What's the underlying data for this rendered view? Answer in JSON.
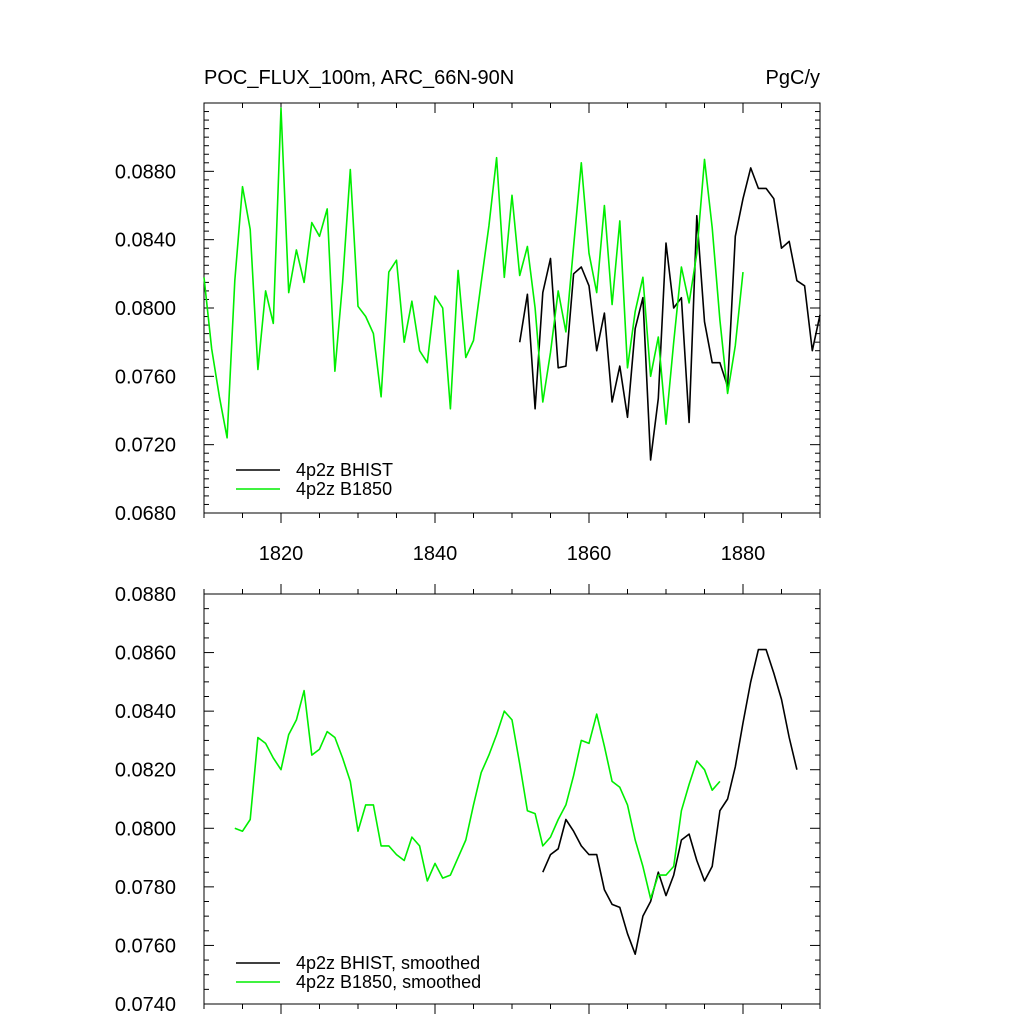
{
  "header": {
    "title": "POC_FLUX_100m, ARC_66N-90N",
    "units": "PgC/y"
  },
  "chart_data": [
    {
      "type": "line",
      "title": "POC_FLUX_100m, ARC_66N-90N",
      "units": "PgC/y",
      "xlim": [
        1810,
        1890
      ],
      "ylim": [
        0.068,
        0.092
      ],
      "x_ticks": [
        "1820",
        "1840",
        "1860",
        "1880"
      ],
      "y_ticks": [
        "0.0680",
        "0.0720",
        "0.0760",
        "0.0800",
        "0.0840",
        "0.0880"
      ],
      "legend_position": "bottom-left",
      "series": [
        {
          "name": "4p2z BHIST",
          "color": "#000000",
          "x": [
            1851,
            1852,
            1853,
            1854,
            1855,
            1856,
            1857,
            1858,
            1859,
            1860,
            1861,
            1862,
            1863,
            1864,
            1865,
            1866,
            1867,
            1868,
            1869,
            1870,
            1871,
            1872,
            1873,
            1874,
            1875,
            1876,
            1877,
            1878,
            1879,
            1880,
            1881,
            1882,
            1883,
            1884,
            1885,
            1886,
            1887,
            1888,
            1889,
            1890
          ],
          "y": [
            0.078,
            0.0808,
            0.0741,
            0.0809,
            0.0829,
            0.0765,
            0.0766,
            0.082,
            0.0824,
            0.0813,
            0.0775,
            0.0797,
            0.0745,
            0.0766,
            0.0736,
            0.0788,
            0.0806,
            0.0711,
            0.0747,
            0.0838,
            0.08,
            0.0806,
            0.0733,
            0.0854,
            0.0792,
            0.0768,
            0.0768,
            0.0754,
            0.0842,
            0.0864,
            0.0882,
            0.087,
            0.087,
            0.0864,
            0.0835,
            0.0839,
            0.0816,
            0.0813,
            0.0775,
            0.0796
          ]
        },
        {
          "name": "4p2z B1850",
          "color": "#00ee00",
          "x": [
            1810,
            1811,
            1812,
            1813,
            1814,
            1815,
            1816,
            1817,
            1818,
            1819,
            1820,
            1821,
            1822,
            1823,
            1824,
            1825,
            1826,
            1827,
            1828,
            1829,
            1830,
            1831,
            1832,
            1833,
            1834,
            1835,
            1836,
            1837,
            1838,
            1839,
            1840,
            1841,
            1842,
            1843,
            1844,
            1845,
            1846,
            1847,
            1848,
            1849,
            1850,
            1851,
            1852,
            1853,
            1854,
            1855,
            1856,
            1857,
            1858,
            1859,
            1860,
            1861,
            1862,
            1863,
            1864,
            1865,
            1866,
            1867,
            1868,
            1869,
            1870,
            1871,
            1872,
            1873,
            1874,
            1875,
            1876,
            1877,
            1878,
            1879,
            1880
          ],
          "y": [
            0.0818,
            0.0776,
            0.0748,
            0.0724,
            0.0816,
            0.0871,
            0.0846,
            0.0764,
            0.081,
            0.0791,
            0.0917,
            0.0809,
            0.0834,
            0.0815,
            0.085,
            0.0842,
            0.0858,
            0.0763,
            0.0815,
            0.0881,
            0.0801,
            0.0795,
            0.0785,
            0.0748,
            0.0821,
            0.0828,
            0.078,
            0.0804,
            0.0775,
            0.0768,
            0.0807,
            0.08,
            0.0741,
            0.0822,
            0.0771,
            0.0781,
            0.0815,
            0.0848,
            0.0888,
            0.0818,
            0.0866,
            0.0819,
            0.0836,
            0.08,
            0.0745,
            0.0774,
            0.081,
            0.0786,
            0.0836,
            0.0885,
            0.0832,
            0.0809,
            0.086,
            0.0802,
            0.0851,
            0.0765,
            0.0798,
            0.0818,
            0.076,
            0.0783,
            0.0732,
            0.078,
            0.0824,
            0.0803,
            0.0832,
            0.0887,
            0.0847,
            0.0793,
            0.075,
            0.0778,
            0.0821
          ]
        }
      ]
    },
    {
      "type": "line",
      "xlim": [
        1810,
        1890
      ],
      "ylim": [
        0.074,
        0.088
      ],
      "x_ticks": [],
      "y_ticks": [
        "0.0740",
        "0.0760",
        "0.0780",
        "0.0800",
        "0.0820",
        "0.0840",
        "0.0860",
        "0.0880"
      ],
      "legend_position": "bottom-left",
      "series": [
        {
          "name": "4p2z BHIST, smoothed",
          "color": "#000000",
          "x": [
            1854,
            1855,
            1856,
            1857,
            1858,
            1859,
            1860,
            1861,
            1862,
            1863,
            1864,
            1865,
            1866,
            1867,
            1868,
            1869,
            1870,
            1871,
            1872,
            1873,
            1874,
            1875,
            1876,
            1877,
            1878,
            1879,
            1880,
            1881,
            1882,
            1883,
            1884,
            1885,
            1886,
            1887
          ],
          "y": [
            0.0785,
            0.0791,
            0.0793,
            0.0803,
            0.0799,
            0.0794,
            0.0791,
            0.0791,
            0.0779,
            0.0774,
            0.0773,
            0.0764,
            0.0757,
            0.077,
            0.0775,
            0.0785,
            0.0777,
            0.0784,
            0.0796,
            0.0798,
            0.0789,
            0.0782,
            0.0787,
            0.0806,
            0.081,
            0.0821,
            0.0836,
            0.085,
            0.0861,
            0.0861,
            0.0853,
            0.0844,
            0.0831,
            0.082
          ]
        },
        {
          "name": "4p2z B1850, smoothed",
          "color": "#00ee00",
          "x": [
            1814,
            1815,
            1816,
            1817,
            1818,
            1819,
            1820,
            1821,
            1822,
            1823,
            1824,
            1825,
            1826,
            1827,
            1828,
            1829,
            1830,
            1831,
            1832,
            1833,
            1834,
            1835,
            1836,
            1837,
            1838,
            1839,
            1840,
            1841,
            1842,
            1843,
            1844,
            1845,
            1846,
            1847,
            1848,
            1849,
            1850,
            1851,
            1852,
            1853,
            1854,
            1855,
            1856,
            1857,
            1858,
            1859,
            1860,
            1861,
            1862,
            1863,
            1864,
            1865,
            1866,
            1867,
            1868,
            1869,
            1870,
            1871,
            1872,
            1873,
            1874,
            1875,
            1876,
            1877
          ],
          "y": [
            0.08,
            0.0799,
            0.0803,
            0.0831,
            0.0829,
            0.0824,
            0.082,
            0.0832,
            0.0837,
            0.0847,
            0.0825,
            0.0827,
            0.0833,
            0.0831,
            0.0824,
            0.0816,
            0.0799,
            0.0808,
            0.0808,
            0.0794,
            0.0794,
            0.0791,
            0.0789,
            0.0797,
            0.0794,
            0.0782,
            0.0788,
            0.0783,
            0.0784,
            0.079,
            0.0796,
            0.0808,
            0.0819,
            0.0825,
            0.0832,
            0.084,
            0.0837,
            0.0822,
            0.0806,
            0.0805,
            0.0794,
            0.0797,
            0.0803,
            0.0808,
            0.0818,
            0.083,
            0.0829,
            0.0839,
            0.0828,
            0.0816,
            0.0814,
            0.0808,
            0.0796,
            0.0787,
            0.0776,
            0.0784,
            0.0784,
            0.0787,
            0.0806,
            0.0815,
            0.0823,
            0.082,
            0.0813,
            0.0816
          ]
        }
      ]
    }
  ]
}
